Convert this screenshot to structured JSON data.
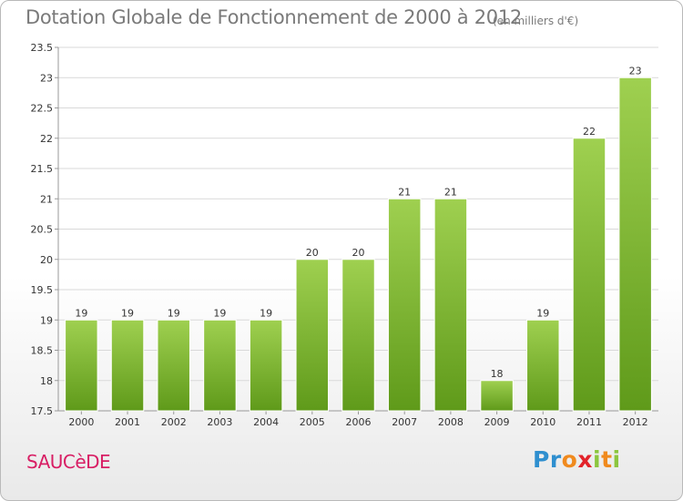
{
  "chart_title": "Dotation Globale de Fonctionnement de 2000 à 2012",
  "unit_label": "(en milliers d'€)",
  "commune": "SAUCèDE",
  "logo": "Proxiti",
  "colors": {
    "bar_top": "#9fd050",
    "bar_bottom": "#5f9a1a",
    "bar_edge": "#ffffff",
    "grid": "#d9d9d9",
    "axis_text": "#333333",
    "commune": "#d81e64"
  },
  "chart_data": {
    "type": "bar",
    "title": "Dotation Globale de Fonctionnement de 2000 à 2012",
    "subtitle": "(en milliers d'€)",
    "categories": [
      "2000",
      "2001",
      "2002",
      "2003",
      "2004",
      "2005",
      "2006",
      "2007",
      "2008",
      "2009",
      "2010",
      "2011",
      "2012"
    ],
    "values": [
      19,
      19,
      19,
      19,
      19,
      20,
      20,
      21,
      21,
      18,
      19,
      22,
      23
    ],
    "data_labels": [
      "19",
      "19",
      "19",
      "19",
      "19",
      "20",
      "20",
      "21",
      "21",
      "18",
      "19",
      "22",
      "23"
    ],
    "ylim": [
      17.5,
      23.5
    ],
    "yticks": [
      17.5,
      18,
      18.5,
      19,
      19.5,
      20,
      20.5,
      21,
      21.5,
      22,
      22.5,
      23,
      23.5
    ],
    "ytick_labels": [
      "17.5",
      "18",
      "18.5",
      "19",
      "19.5",
      "20",
      "20.5",
      "21",
      "21.5",
      "22",
      "22.5",
      "23",
      "23.5"
    ],
    "grid": true,
    "xlabel": "",
    "ylabel": ""
  }
}
